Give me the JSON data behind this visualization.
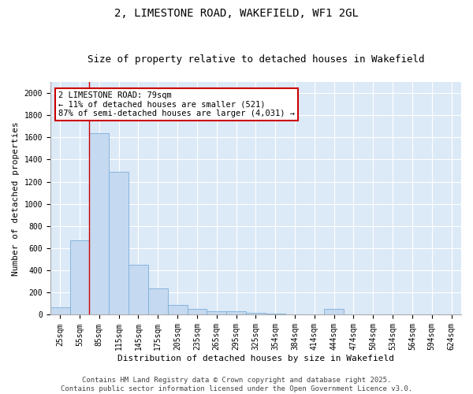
{
  "title_line1": "2, LIMESTONE ROAD, WAKEFIELD, WF1 2GL",
  "title_line2": "Size of property relative to detached houses in Wakefield",
  "xlabel": "Distribution of detached houses by size in Wakefield",
  "ylabel": "Number of detached properties",
  "categories": [
    "25sqm",
    "55sqm",
    "85sqm",
    "115sqm",
    "145sqm",
    "175sqm",
    "205sqm",
    "235sqm",
    "265sqm",
    "295sqm",
    "325sqm",
    "354sqm",
    "384sqm",
    "414sqm",
    "444sqm",
    "474sqm",
    "504sqm",
    "534sqm",
    "564sqm",
    "594sqm",
    "624sqm"
  ],
  "values": [
    70,
    670,
    1640,
    1290,
    450,
    240,
    90,
    55,
    35,
    30,
    20,
    10,
    2,
    1,
    50,
    2,
    1,
    0,
    0,
    0,
    0
  ],
  "bar_color": "#c5d9f0",
  "bar_edge_color": "#7aaedb",
  "background_color": "#dce9f7",
  "vline_x_index": 1.5,
  "vline_color": "#cc0000",
  "annotation_text": "2 LIMESTONE ROAD: 79sqm\n← 11% of detached houses are smaller (521)\n87% of semi-detached houses are larger (4,031) →",
  "annotation_box_color": "#ffffff",
  "annotation_box_edge": "#cc0000",
  "ylim": [
    0,
    2100
  ],
  "yticks": [
    0,
    200,
    400,
    600,
    800,
    1000,
    1200,
    1400,
    1600,
    1800,
    2000
  ],
  "footer_line1": "Contains HM Land Registry data © Crown copyright and database right 2025.",
  "footer_line2": "Contains public sector information licensed under the Open Government Licence v3.0.",
  "title_fontsize": 10,
  "subtitle_fontsize": 9,
  "axis_label_fontsize": 8,
  "tick_fontsize": 7,
  "annotation_fontsize": 7.5,
  "footer_fontsize": 6.5
}
